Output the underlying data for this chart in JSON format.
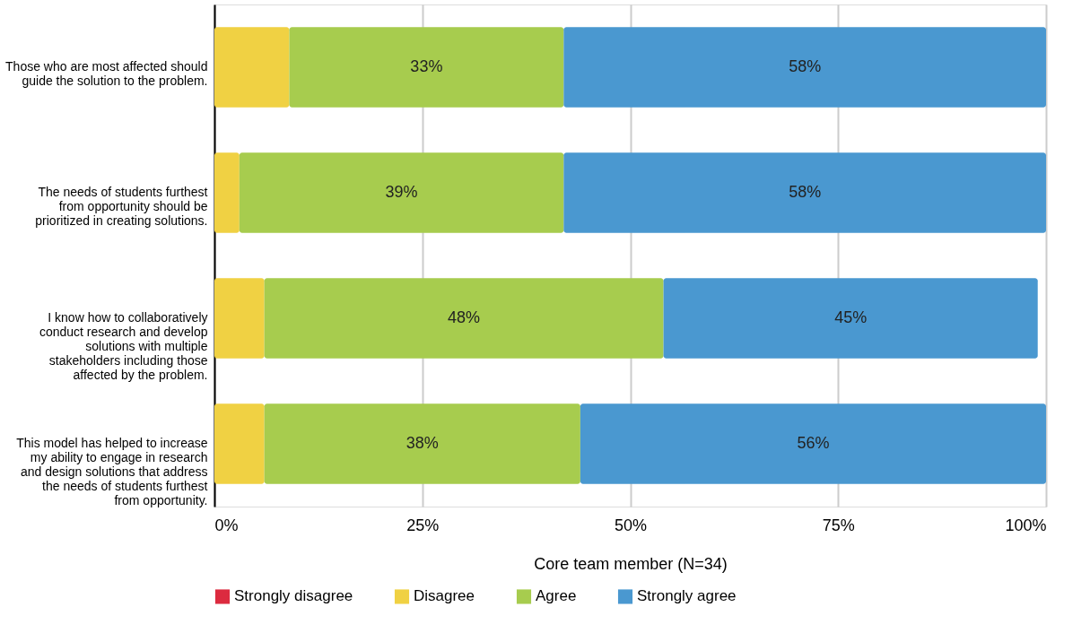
{
  "chart_data": {
    "type": "bar",
    "orientation": "horizontal",
    "stacked": true,
    "categories": [
      "Those who are most affected should guide the solution to the problem.",
      "The needs of students furthest from opportunity should be prioritized in creating solutions.",
      "I know how to collaboratively conduct research and develop solutions with multiple stakeholders including those affected by the problem.",
      "This model has helped to increase my ability to engage in research and design solutions that address the needs of students furthest from opportunity."
    ],
    "series": [
      {
        "name": "Strongly disagree",
        "color": "#dc2b3f",
        "values": [
          0,
          0,
          0,
          0
        ]
      },
      {
        "name": "Disagree",
        "color": "#f0d143",
        "values": [
          9,
          3,
          6,
          6
        ]
      },
      {
        "name": "Agree",
        "color": "#a7cc4e",
        "values": [
          33,
          39,
          48,
          38
        ],
        "value_labels": [
          "33%",
          "39%",
          "48%",
          "38%"
        ]
      },
      {
        "name": "Strongly agree",
        "color": "#4a98d0",
        "values": [
          58,
          58,
          45,
          56
        ],
        "value_labels": [
          "58%",
          "58%",
          "45%",
          "56%"
        ]
      }
    ],
    "xlim": [
      0,
      100
    ],
    "xticks": [
      {
        "value": 0,
        "label": "0%"
      },
      {
        "value": 25,
        "label": "25%"
      },
      {
        "value": 50,
        "label": "50%"
      },
      {
        "value": 75,
        "label": "75%"
      },
      {
        "value": 100,
        "label": "100%"
      }
    ],
    "xlabel": "Core team member (N=34)",
    "grid": "x",
    "legend": "bottom"
  }
}
